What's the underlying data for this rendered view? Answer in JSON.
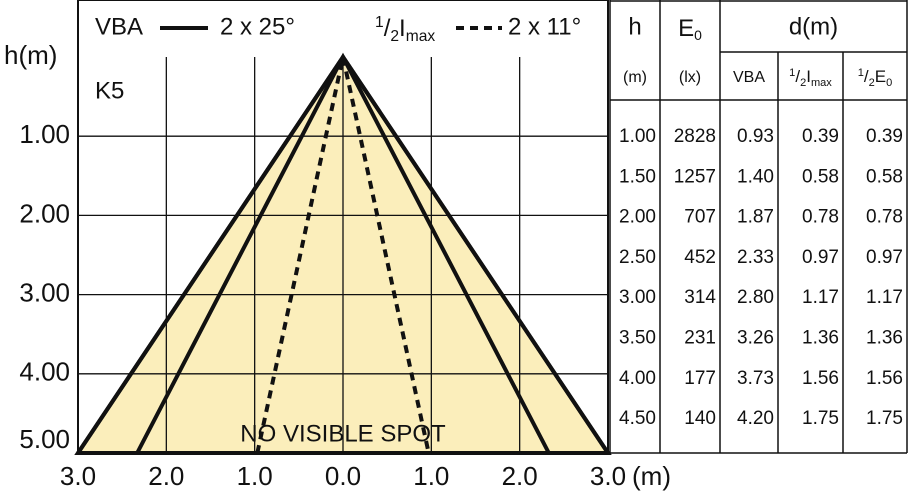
{
  "chart_data": {
    "type": "cone",
    "ylabel": "h(m)",
    "xlabel": "(m)",
    "ylim": [
      0,
      5
    ],
    "yticks": [
      {
        "value": 1,
        "label": "1.00"
      },
      {
        "value": 2,
        "label": "2.00"
      },
      {
        "value": 3,
        "label": "3.00"
      },
      {
        "value": 4,
        "label": "4.00"
      },
      {
        "value": 5,
        "label": "5.00"
      }
    ],
    "xlim": [
      -3,
      3
    ],
    "xticks": [
      {
        "value": -3,
        "label": "3.0"
      },
      {
        "value": -2,
        "label": "2.0"
      },
      {
        "value": -1,
        "label": "1.0"
      },
      {
        "value": 0,
        "label": "0.0"
      },
      {
        "value": 1,
        "label": "1.0"
      },
      {
        "value": 2,
        "label": "2.0"
      },
      {
        "value": 3,
        "label": "3.0"
      }
    ],
    "grid": true,
    "code": "K5",
    "annotation": "NO VISIBLE SPOT",
    "cone": {
      "color": "#fbeebb",
      "x": [
        -3,
        0,
        3
      ],
      "y": [
        5,
        0,
        5
      ]
    },
    "series": [
      {
        "name": "VBA",
        "angle": "2 x 25°",
        "dash": false,
        "color": "#111111",
        "x": [
          -2.33,
          0,
          2.33
        ],
        "y": [
          5,
          0,
          5
        ]
      },
      {
        "name": {
          "num": "1",
          "slash": "/",
          "den": "2",
          "symbol": "I",
          "subscript": "max"
        },
        "angle": "2 x 11°",
        "dash": true,
        "color": "#111111",
        "x": [
          -0.97,
          0,
          0.97
        ],
        "y": [
          5,
          0,
          5
        ]
      }
    ],
    "table": {
      "headers": {
        "h": "h",
        "e0": {
          "symbol": "E",
          "subscript": "0"
        },
        "d": "d(m)"
      },
      "units": [
        "(m)",
        "(lx)",
        "VBA",
        {
          "num": "1",
          "slash": "/",
          "den": "2",
          "symbol": "I",
          "subscript": "max"
        },
        {
          "num": "1",
          "slash": "/",
          "den": "2",
          "symbol": "E",
          "subscript": "0"
        }
      ],
      "rows": [
        [
          "1.00",
          "2828",
          "0.93",
          "0.39",
          "0.39"
        ],
        [
          "1.50",
          "1257",
          "1.40",
          "0.58",
          "0.58"
        ],
        [
          "2.00",
          "707",
          "1.87",
          "0.78",
          "0.78"
        ],
        [
          "2.50",
          "452",
          "2.33",
          "0.97",
          "0.97"
        ],
        [
          "3.00",
          "314",
          "2.80",
          "1.17",
          "1.17"
        ],
        [
          "3.50",
          "231",
          "3.26",
          "1.36",
          "1.36"
        ],
        [
          "4.00",
          "177",
          "3.73",
          "1.56",
          "1.56"
        ],
        [
          "4.50",
          "140",
          "4.20",
          "1.75",
          "1.75"
        ]
      ]
    }
  }
}
